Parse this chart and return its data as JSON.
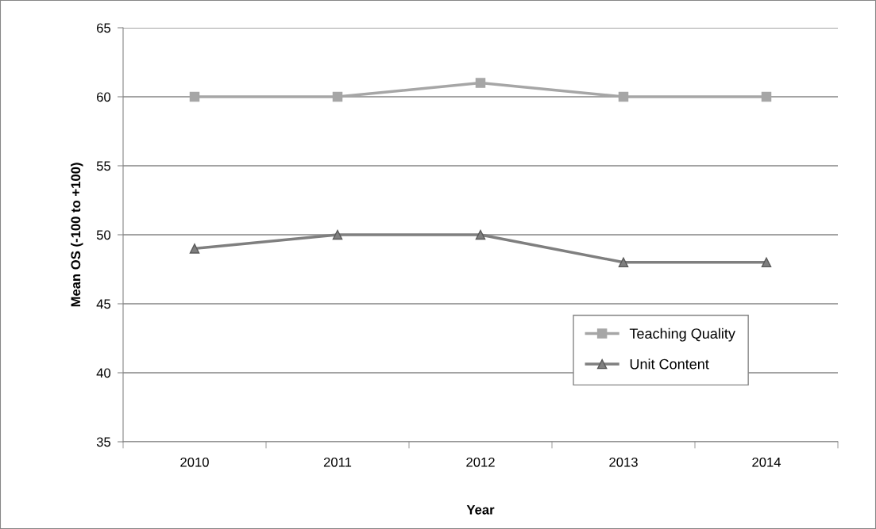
{
  "chart_data": {
    "type": "line",
    "xlabel": "Year",
    "ylabel": "Mean OS (-100 to +100)",
    "categories": [
      "2010",
      "2011",
      "2012",
      "2013",
      "2014"
    ],
    "series": [
      {
        "name": "Teaching Quality",
        "color": "#a6a6a6",
        "marker": "square",
        "values": [
          60,
          60,
          61,
          60,
          60
        ]
      },
      {
        "name": "Unit Content",
        "color": "#7f7f7f",
        "marker": "triangle",
        "values": [
          49,
          50,
          50,
          48,
          48
        ]
      }
    ],
    "ylim": [
      35,
      65
    ],
    "yticks": [
      35,
      40,
      45,
      50,
      55,
      60,
      65
    ],
    "grid": "y",
    "legend": "bottom right"
  }
}
